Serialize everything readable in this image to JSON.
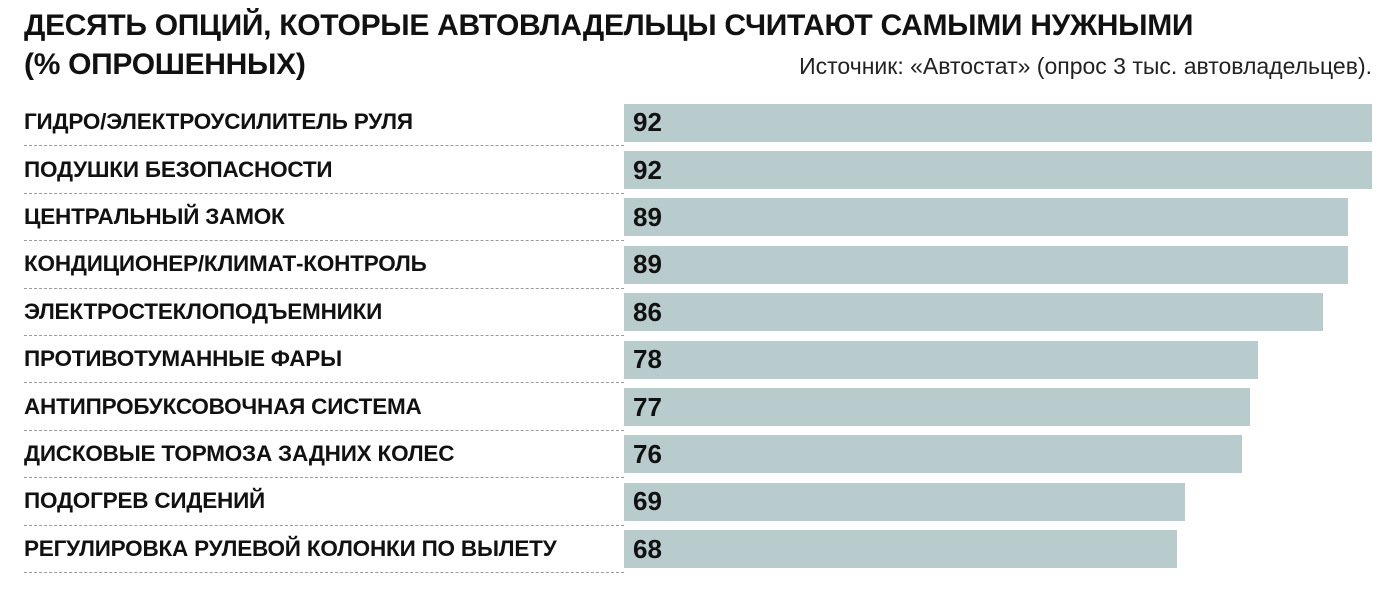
{
  "header": {
    "title_line1": "ДЕСЯТЬ ОПЦИЙ, КОТОРЫЕ АВТОВЛАДЕЛЬЦЫ СЧИТАЮТ САМЫМИ НУЖНЫМИ",
    "title_line2": "(% ОПРОШЕННЫХ)",
    "source": "Источник: «Автостат» (опрос 3 тыс. автовладельцев)."
  },
  "chart_data": {
    "type": "bar",
    "orientation": "horizontal",
    "title": "ДЕСЯТЬ ОПЦИЙ, КОТОРЫЕ АВТОВЛАДЕЛЬЦЫ СЧИТАЮТ САМЫМИ НУЖНЫМИ (% ОПРОШЕННЫХ)",
    "source": "Источник: «Автостат» (опрос 3 тыс. автовладельцев).",
    "categories": [
      "ГИДРО/ЭЛЕКТРОУСИЛИТЕЛЬ РУЛЯ",
      "ПОДУШКИ БЕЗОПАСНОСТИ",
      "ЦЕНТРАЛЬНЫЙ ЗАМОК",
      "КОНДИЦИОНЕР/КЛИМАТ-КОНТРОЛЬ",
      "ЭЛЕКТРОСТЕКЛОПОДЪЕМНИКИ",
      "ПРОТИВОТУМАННЫЕ ФАРЫ",
      "АНТИПРОБУКСОВОЧНАЯ СИСТЕМА",
      "ДИСКОВЫЕ ТОРМОЗА ЗАДНИХ КОЛЕС",
      "ПОДОГРЕВ СИДЕНИЙ",
      "РЕГУЛИРОВКА РУЛЕВОЙ КОЛОНКИ ПО ВЫЛЕТУ"
    ],
    "values": [
      92,
      92,
      89,
      89,
      86,
      78,
      77,
      76,
      69,
      68
    ],
    "xlabel": "",
    "ylabel": "",
    "xlim": [
      0,
      92
    ],
    "grid": false,
    "legend": "none",
    "value_labels": "inside-left",
    "bar_color": "#b9cccd",
    "separator_style": "dashed"
  }
}
